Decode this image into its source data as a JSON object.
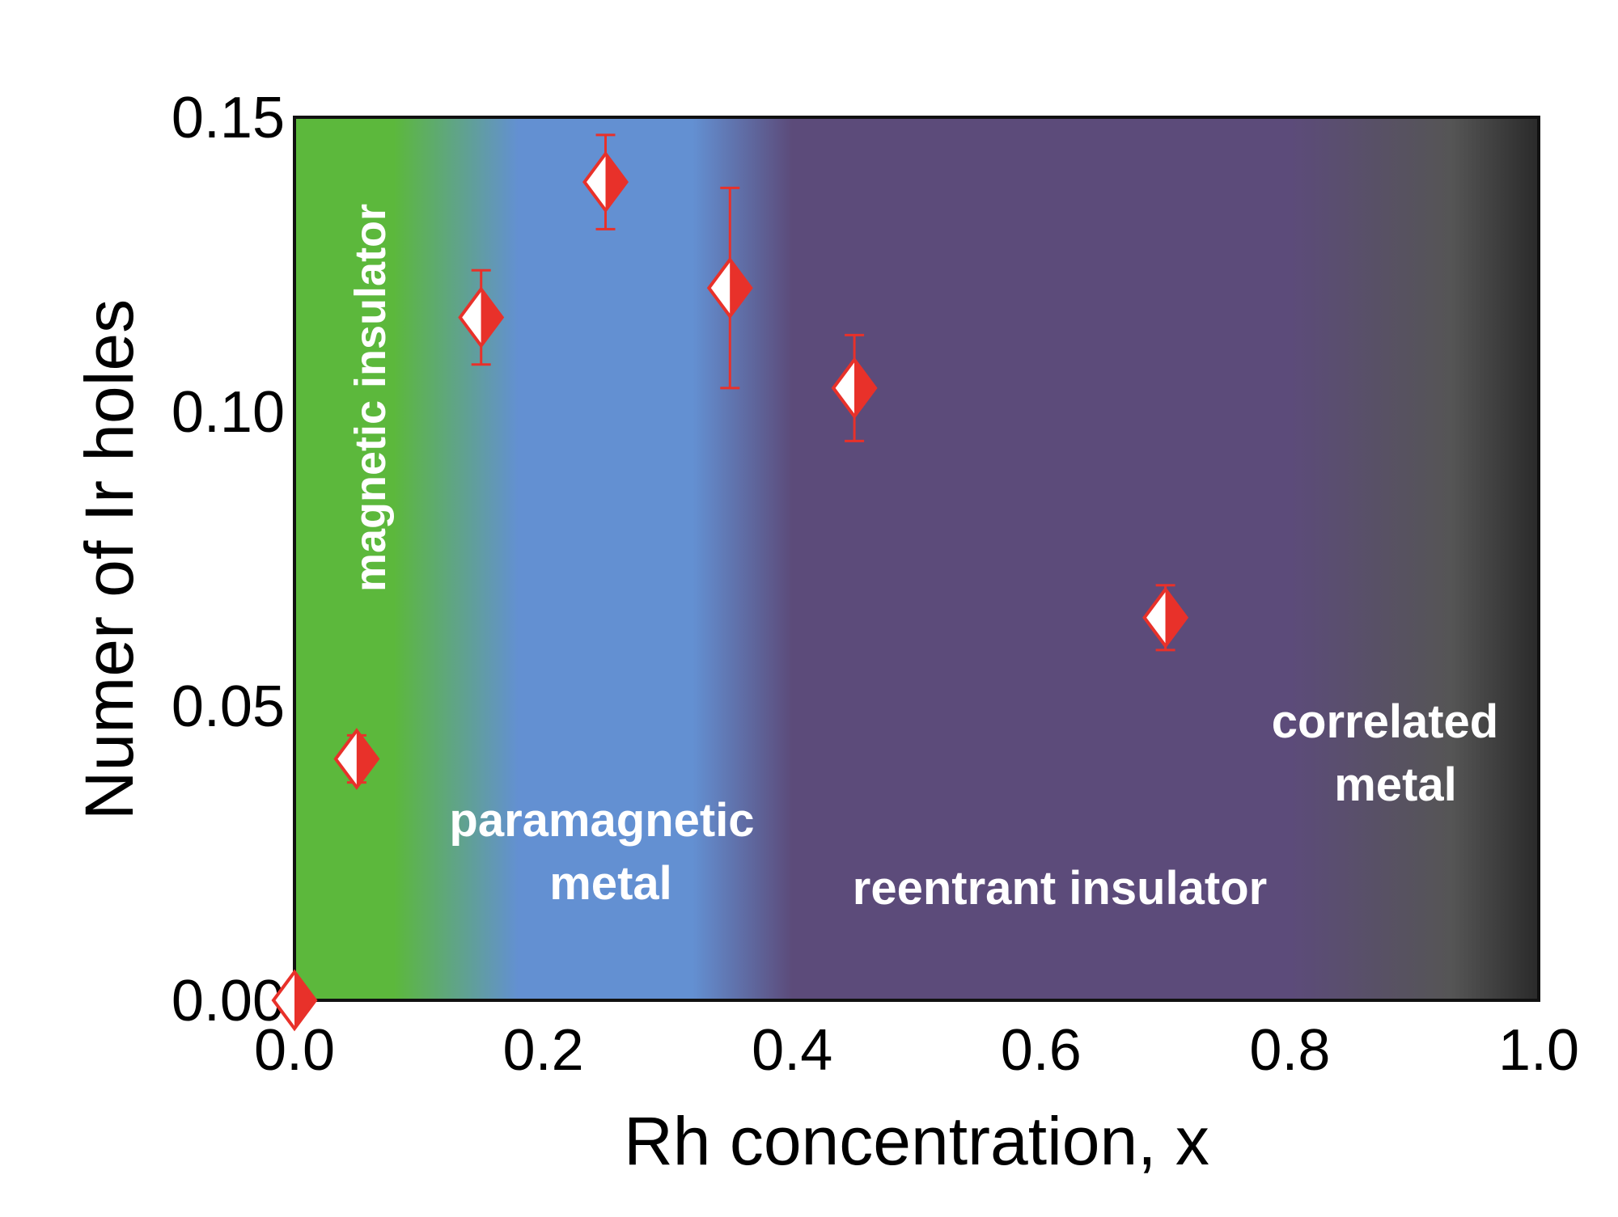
{
  "chart_data": {
    "type": "scatter",
    "xlabel": "Rh concentration, x",
    "ylabel": "Numer of Ir holes",
    "xlim": [
      0.0,
      1.0
    ],
    "ylim": [
      0.0,
      0.15
    ],
    "xticks": [
      "0.0",
      "0.2",
      "0.4",
      "0.6",
      "0.8",
      "1.0"
    ],
    "xtick_values": [
      0.0,
      0.2,
      0.4,
      0.6,
      0.8,
      1.0
    ],
    "yticks": [
      "0.00",
      "0.05",
      "0.10",
      "0.15"
    ],
    "ytick_values": [
      0.0,
      0.05,
      0.1,
      0.15
    ],
    "grid": false,
    "marker": "half-filled diamond",
    "colors": {
      "marker": "#e8312a",
      "errorbar": "#e8312a",
      "region_green": "#5cb83c",
      "region_blue": "#6390d2",
      "region_purple": "#5c4b7a",
      "region_dark": "#2e2e2e",
      "region_label": "#ffffff"
    },
    "points": [
      {
        "x": 0.0,
        "y": 0.0,
        "err": 0.0
      },
      {
        "x": 0.05,
        "y": 0.041,
        "err": 0.004
      },
      {
        "x": 0.15,
        "y": 0.116,
        "err": 0.008
      },
      {
        "x": 0.25,
        "y": 0.139,
        "err": 0.008
      },
      {
        "x": 0.35,
        "y": 0.121,
        "err": 0.017
      },
      {
        "x": 0.45,
        "y": 0.104,
        "err": 0.009
      },
      {
        "x": 0.7,
        "y": 0.065,
        "err": 0.0055
      }
    ],
    "regions": [
      {
        "name": "magnetic insulator",
        "x_start": 0.0,
        "x_end": 0.1
      },
      {
        "name": "paramagnetic metal",
        "x_start": 0.1,
        "x_end": 0.4
      },
      {
        "name": "reentrant insulator",
        "x_start": 0.4,
        "x_end": 0.85
      },
      {
        "name": "correlated metal",
        "x_start": 0.85,
        "x_end": 1.0
      }
    ],
    "region_labels": {
      "magnetic_insulator": "magnetic insulator",
      "paramagnetic_line1": "paramagnetic",
      "paramagnetic_line2": "metal",
      "reentrant": "reentrant insulator",
      "correlated_line1": "correlated",
      "correlated_line2": "metal"
    }
  }
}
